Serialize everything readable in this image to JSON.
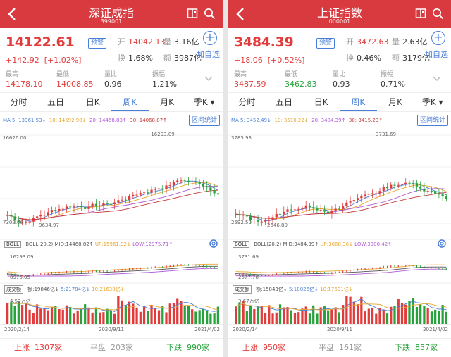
{
  "panels": [
    {
      "title": "深证成指",
      "code": "399001",
      "price": "14122.61",
      "alert": "预警",
      "change": "+142.92",
      "change_pct": "[+1.02%]",
      "open_k": "开",
      "open": "14042.13",
      "vol_k": "量",
      "vol": "3.16亿",
      "turn_k": "换",
      "turn": "1.68%",
      "amt_k": "额",
      "amt": "3987亿",
      "add": "加自选",
      "high_k": "最高",
      "high": "14178.10",
      "low_k": "最低",
      "low": "14008.85",
      "ratio_k": "量比",
      "ratio": "0.96",
      "amp_k": "振幅",
      "amp": "1.21%",
      "tabs": [
        "分时",
        "五日",
        "日K",
        "周K",
        "月K",
        "季K ▾"
      ],
      "ma": [
        "MA 5: 13961.53↓",
        "10: 14592.98↓",
        "20: 14468.83↑",
        "30: 14068.87↑"
      ],
      "interval": "区间统计",
      "max_label": "16293.09",
      "top_left": "16626.00",
      "min_label": "9634.97",
      "bot_left": "7302.06",
      "boll_tag": "BOLL",
      "boll_vals": [
        "BOLL(20,2)",
        "MID:14468.82↑",
        "UP:15961.92↓",
        "LOW:12975.71↑"
      ],
      "boll_top": "16293.09",
      "boll_bot": "8976.05",
      "vol_tag": "成交额",
      "vol_vals": [
        "额:19846亿↓",
        "5:21784亿↓",
        "10:21638亿↓"
      ],
      "vol_top": "4.52万亿",
      "dates": [
        "2020/2/14",
        "2020/9/11",
        "2021/4/02"
      ],
      "up_k": "上涨",
      "up": "1307家",
      "flat_k": "平盘",
      "flat": "203家",
      "down_k": "下跌",
      "down": "990家",
      "chart_data": {
        "type": "candlestick",
        "series": "weekly K",
        "ylim": [
          7302.06,
          16626.0
        ],
        "max": 16293.09,
        "min": 9634.97
      },
      "seed": 7,
      "peakPos": 0.82
    },
    {
      "title": "上证指数",
      "code": "000001",
      "price": "3484.39",
      "alert": "预警",
      "change": "+18.06",
      "change_pct": "[+0.52%]",
      "open_k": "开",
      "open": "3472.63",
      "vol_k": "量",
      "vol": "2.63亿",
      "turn_k": "换",
      "turn": "0.46%",
      "amt_k": "额",
      "amt": "3179亿",
      "add": "加自选",
      "high_k": "最高",
      "high": "3487.59",
      "low_k": "最低",
      "low": "3462.83",
      "ratio_k": "量比",
      "ratio": "0.93",
      "amp_k": "振幅",
      "amp": "0.71%",
      "tabs": [
        "分时",
        "五日",
        "日K",
        "周K",
        "月K",
        "季K ▾"
      ],
      "ma": [
        "MA 5: 3452.49↓",
        "10: 3510.22↓",
        "20: 3484.39↑",
        "30: 3415.23↑"
      ],
      "interval": "区间统计",
      "max_label": "3731.69",
      "top_left": "3785.93",
      "min_label": "2646.80",
      "bot_left": "2592.50",
      "boll_tag": "BOLL",
      "boll_vals": [
        "BOLL(20,2)",
        "MID:3484.39↑",
        "UP:3668.36↓",
        "LOW:3300.42↑"
      ],
      "boll_top": "3731.69",
      "boll_bot": "2577.78",
      "vol_tag": "成交额",
      "vol_vals": [
        "额:15843亿↓",
        "5:18026亿↓",
        "10:17691亿↓"
      ],
      "vol_top": "3.67万亿",
      "dates": [
        "2020/2/14",
        "2020/9/11",
        "2021/4/02"
      ],
      "up_k": "上涨",
      "up": "950家",
      "flat_k": "平盘",
      "flat": "161家",
      "down_k": "下跌",
      "down": "857家",
      "chart_data": {
        "type": "candlestick",
        "series": "weekly K",
        "ylim": [
          2592.5,
          3785.93
        ],
        "max": 3731.69,
        "min": 2646.8
      },
      "seed": 13,
      "peakPos": 0.78
    }
  ],
  "colors": {
    "up": "#e23b3b",
    "down": "#28a23c",
    "accent": "#4a7fd8",
    "header": "#d93a3f"
  }
}
